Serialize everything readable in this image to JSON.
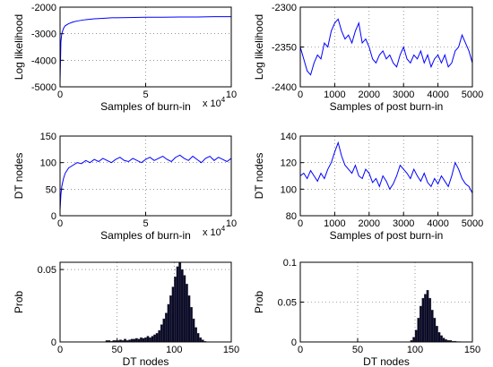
{
  "chart_data": [
    {
      "type": "line",
      "xlabel": "Samples of burn-in",
      "ylabel": "Log likelihood",
      "x_multiplier": {
        "base": "x 10",
        "exponent": "4"
      },
      "xlim": [
        0,
        10
      ],
      "xticks": [
        0,
        5,
        10
      ],
      "ylim": [
        -5000,
        -2000
      ],
      "yticks": [
        -5000,
        -4000,
        -3000,
        -2000
      ],
      "grid": true,
      "series": [
        {
          "color": "#0000ff",
          "x": [
            0,
            0.05,
            0.1,
            0.2,
            0.3,
            0.5,
            0.75,
            1,
            1.5,
            2,
            2.5,
            3,
            4,
            5,
            6,
            7,
            8,
            9,
            10
          ],
          "values": [
            -4800,
            -3300,
            -3000,
            -2800,
            -2700,
            -2620,
            -2560,
            -2520,
            -2470,
            -2440,
            -2420,
            -2400,
            -2390,
            -2380,
            -2380,
            -2370,
            -2370,
            -2360,
            -2360
          ]
        }
      ]
    },
    {
      "type": "line",
      "xlabel": "Samples of post burn-in",
      "ylabel": "Log likelihood",
      "xlim": [
        0,
        5000
      ],
      "xticks": [
        0,
        1000,
        2000,
        3000,
        4000,
        5000
      ],
      "ylim": [
        -2400,
        -2300
      ],
      "yticks": [
        -2400,
        -2350,
        -2300
      ],
      "grid": true,
      "series": [
        {
          "color": "#0000ff",
          "x": [
            0,
            100,
            200,
            300,
            400,
            500,
            600,
            700,
            800,
            900,
            1000,
            1100,
            1200,
            1300,
            1400,
            1500,
            1600,
            1700,
            1800,
            1900,
            2000,
            2100,
            2200,
            2300,
            2400,
            2500,
            2600,
            2700,
            2800,
            2900,
            3000,
            3100,
            3200,
            3300,
            3400,
            3500,
            3600,
            3700,
            3800,
            3900,
            4000,
            4100,
            4200,
            4300,
            4400,
            4500,
            4600,
            4700,
            4800,
            4900,
            5000
          ],
          "values": [
            -2350,
            -2365,
            -2380,
            -2385,
            -2370,
            -2360,
            -2365,
            -2345,
            -2350,
            -2330,
            -2320,
            -2315,
            -2330,
            -2340,
            -2335,
            -2345,
            -2330,
            -2320,
            -2345,
            -2340,
            -2350,
            -2365,
            -2370,
            -2360,
            -2355,
            -2365,
            -2360,
            -2370,
            -2375,
            -2360,
            -2350,
            -2365,
            -2370,
            -2360,
            -2365,
            -2355,
            -2370,
            -2360,
            -2375,
            -2365,
            -2360,
            -2370,
            -2360,
            -2375,
            -2370,
            -2355,
            -2350,
            -2335,
            -2345,
            -2355,
            -2370
          ]
        }
      ]
    },
    {
      "type": "line",
      "xlabel": "Samples of burn-in",
      "ylabel": "DT nodes",
      "x_multiplier": {
        "base": "x 10",
        "exponent": "4"
      },
      "xlim": [
        0,
        10
      ],
      "xticks": [
        0,
        5,
        10
      ],
      "ylim": [
        0,
        150
      ],
      "yticks": [
        0,
        50,
        100,
        150
      ],
      "grid": true,
      "series": [
        {
          "color": "#0000ff",
          "x": [
            0,
            0.05,
            0.1,
            0.2,
            0.3,
            0.5,
            0.75,
            1,
            1.25,
            1.5,
            1.75,
            2,
            2.25,
            2.5,
            2.75,
            3,
            3.25,
            3.5,
            3.75,
            4,
            4.25,
            4.5,
            4.75,
            5,
            5.25,
            5.5,
            5.75,
            6,
            6.25,
            6.5,
            6.75,
            7,
            7.25,
            7.5,
            7.75,
            8,
            8.25,
            8.5,
            8.75,
            9,
            9.25,
            9.5,
            9.75,
            10
          ],
          "values": [
            10,
            40,
            55,
            70,
            80,
            90,
            95,
            100,
            98,
            104,
            100,
            106,
            102,
            108,
            104,
            100,
            106,
            110,
            104,
            102,
            108,
            104,
            100,
            106,
            110,
            104,
            108,
            112,
            106,
            102,
            110,
            114,
            108,
            104,
            112,
            106,
            100,
            108,
            112,
            104,
            110,
            106,
            102,
            108
          ]
        }
      ]
    },
    {
      "type": "line",
      "xlabel": "Samples of post burn-in",
      "ylabel": "DT nodes",
      "xlim": [
        0,
        5000
      ],
      "xticks": [
        0,
        1000,
        2000,
        3000,
        4000,
        5000
      ],
      "ylim": [
        80,
        140
      ],
      "yticks": [
        80,
        100,
        120,
        140
      ],
      "grid": true,
      "series": [
        {
          "color": "#0000ff",
          "x": [
            0,
            100,
            200,
            300,
            400,
            500,
            600,
            700,
            800,
            900,
            1000,
            1100,
            1200,
            1300,
            1400,
            1500,
            1600,
            1700,
            1800,
            1900,
            2000,
            2100,
            2200,
            2300,
            2400,
            2500,
            2600,
            2700,
            2800,
            2900,
            3000,
            3100,
            3200,
            3300,
            3400,
            3500,
            3600,
            3700,
            3800,
            3900,
            4000,
            4100,
            4200,
            4300,
            4400,
            4500,
            4600,
            4700,
            4800,
            4900,
            5000
          ],
          "values": [
            110,
            112,
            108,
            114,
            110,
            106,
            112,
            108,
            115,
            120,
            128,
            135,
            125,
            118,
            115,
            112,
            118,
            110,
            108,
            115,
            112,
            105,
            108,
            102,
            110,
            106,
            100,
            104,
            110,
            118,
            115,
            112,
            108,
            115,
            110,
            106,
            112,
            105,
            102,
            108,
            104,
            110,
            106,
            102,
            110,
            120,
            115,
            108,
            104,
            102,
            97
          ]
        }
      ]
    },
    {
      "type": "histogram",
      "xlabel": "DT nodes",
      "ylabel": "Prob",
      "color": "#0a0a2a",
      "xlim": [
        0,
        150
      ],
      "xticks": [
        0,
        50,
        100,
        150
      ],
      "ylim": [
        0,
        0.055
      ],
      "yticks": [
        0,
        0.05
      ],
      "grid": true,
      "bins": [
        40,
        42,
        44,
        46,
        48,
        50,
        52,
        54,
        56,
        58,
        60,
        62,
        64,
        66,
        68,
        70,
        72,
        74,
        76,
        78,
        80,
        82,
        84,
        86,
        88,
        90,
        92,
        94,
        96,
        98,
        100,
        102,
        104,
        106,
        108,
        110,
        112,
        114,
        116,
        118,
        120,
        122,
        124,
        126,
        128,
        130
      ],
      "counts": [
        0.001,
        0.001,
        0.0005,
        0.001,
        0.001,
        0.001,
        0.0015,
        0.001,
        0.002,
        0.001,
        0.0015,
        0.002,
        0.002,
        0.0025,
        0.002,
        0.003,
        0.0025,
        0.003,
        0.004,
        0.003,
        0.004,
        0.005,
        0.006,
        0.008,
        0.012,
        0.016,
        0.02,
        0.026,
        0.032,
        0.038,
        0.045,
        0.052,
        0.055,
        0.05,
        0.046,
        0.04,
        0.032,
        0.024,
        0.016,
        0.01,
        0.006,
        0.003,
        0.0015,
        0.0005,
        0
      ]
    },
    {
      "type": "histogram",
      "xlabel": "DT nodes",
      "ylabel": "Prob",
      "color": "#0a0a2a",
      "xlim": [
        0,
        150
      ],
      "xticks": [
        0,
        50,
        100,
        150
      ],
      "ylim": [
        0,
        0.1
      ],
      "yticks": [
        0,
        0.05,
        0.1
      ],
      "grid": true,
      "bins": [
        96,
        98,
        100,
        102,
        104,
        106,
        108,
        110,
        112,
        114,
        116,
        118,
        120,
        122,
        124,
        126,
        128,
        130,
        132,
        134,
        136,
        138,
        140
      ],
      "counts": [
        0.002,
        0.006,
        0.015,
        0.03,
        0.045,
        0.055,
        0.06,
        0.065,
        0.055,
        0.04,
        0.03,
        0.02,
        0.012,
        0.008,
        0.005,
        0.003,
        0.002,
        0.002,
        0.001,
        0.001,
        0.0005,
        0.0005
      ]
    }
  ]
}
